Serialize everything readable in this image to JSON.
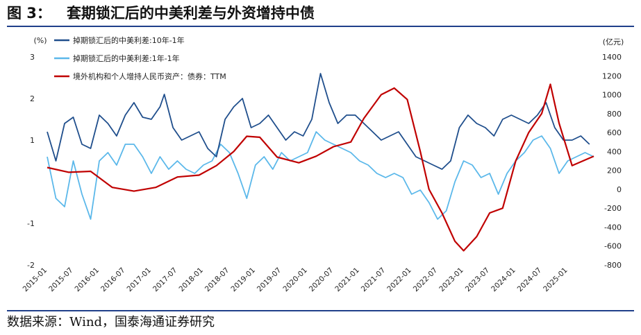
{
  "header": {
    "figure_label": "图 3：",
    "title": "套期锁汇后的中美利差与外资增持中债"
  },
  "source": "数据来源：Wind，国泰海通证券研究",
  "chart_data": {
    "type": "line",
    "left_axis": {
      "unit": "(%)",
      "ylim": [
        -2,
        3
      ],
      "ticks": [
        -2,
        -1,
        1,
        2,
        3
      ]
    },
    "right_axis": {
      "unit": "(亿元)",
      "ylim": [
        -800,
        1400
      ],
      "ticks": [
        -800,
        -600,
        -400,
        -200,
        0,
        200,
        400,
        600,
        800,
        1000,
        1200,
        1400
      ]
    },
    "x_ticks": [
      "2015-01",
      "2015-07",
      "2016-01",
      "2016-07",
      "2017-01",
      "2017-07",
      "2018-01",
      "2018-07",
      "2019-01",
      "2019-07",
      "2020-01",
      "2020-07",
      "2021-01",
      "2021-07",
      "2022-01",
      "2022-07",
      "2023-01",
      "2023-07",
      "2024-01",
      "2024-07",
      "2025-01"
    ],
    "x_range": [
      "2015-01",
      "2025-07"
    ],
    "legend_position": "top-left",
    "series": [
      {
        "name": "掉期锁汇后的中美利差:10年-1年",
        "axis": "left",
        "color": "#1f4e8c",
        "points": [
          [
            "2015-01",
            1.2
          ],
          [
            "2015-03",
            0.5
          ],
          [
            "2015-05",
            1.4
          ],
          [
            "2015-07",
            1.55
          ],
          [
            "2015-09",
            0.9
          ],
          [
            "2015-11",
            0.8
          ],
          [
            "2016-01",
            1.6
          ],
          [
            "2016-03",
            1.4
          ],
          [
            "2016-05",
            1.1
          ],
          [
            "2016-07",
            1.6
          ],
          [
            "2016-09",
            1.9
          ],
          [
            "2016-11",
            1.55
          ],
          [
            "2017-01",
            1.5
          ],
          [
            "2017-03",
            1.8
          ],
          [
            "2017-04",
            2.1
          ],
          [
            "2017-06",
            1.3
          ],
          [
            "2017-08",
            1.0
          ],
          [
            "2017-10",
            1.1
          ],
          [
            "2017-12",
            1.2
          ],
          [
            "2018-02",
            0.8
          ],
          [
            "2018-04",
            0.6
          ],
          [
            "2018-06",
            1.5
          ],
          [
            "2018-08",
            1.8
          ],
          [
            "2018-10",
            2.0
          ],
          [
            "2018-12",
            1.3
          ],
          [
            "2019-02",
            1.4
          ],
          [
            "2019-04",
            1.6
          ],
          [
            "2019-06",
            1.3
          ],
          [
            "2019-08",
            1.0
          ],
          [
            "2019-10",
            1.2
          ],
          [
            "2019-12",
            1.1
          ],
          [
            "2020-02",
            1.5
          ],
          [
            "2020-04",
            2.6
          ],
          [
            "2020-06",
            1.9
          ],
          [
            "2020-08",
            1.4
          ],
          [
            "2020-10",
            1.6
          ],
          [
            "2020-12",
            1.6
          ],
          [
            "2021-02",
            1.4
          ],
          [
            "2021-04",
            1.2
          ],
          [
            "2021-06",
            1.0
          ],
          [
            "2021-08",
            1.1
          ],
          [
            "2021-10",
            1.2
          ],
          [
            "2021-12",
            0.9
          ],
          [
            "2022-02",
            0.6
          ],
          [
            "2022-04",
            0.5
          ],
          [
            "2022-06",
            0.4
          ],
          [
            "2022-08",
            0.3
          ],
          [
            "2022-10",
            0.5
          ],
          [
            "2022-12",
            1.3
          ],
          [
            "2023-02",
            1.6
          ],
          [
            "2023-04",
            1.4
          ],
          [
            "2023-06",
            1.3
          ],
          [
            "2023-08",
            1.1
          ],
          [
            "2023-10",
            1.5
          ],
          [
            "2023-12",
            1.6
          ],
          [
            "2024-02",
            1.5
          ],
          [
            "2024-04",
            1.4
          ],
          [
            "2024-06",
            1.6
          ],
          [
            "2024-08",
            1.9
          ],
          [
            "2024-10",
            1.3
          ],
          [
            "2024-12",
            1.0
          ],
          [
            "2025-02",
            1.0
          ],
          [
            "2025-04",
            1.1
          ],
          [
            "2025-06",
            0.9
          ]
        ]
      },
      {
        "name": "掉期锁汇后的中美利差:1年-1年",
        "axis": "left",
        "color": "#5bb8ea",
        "points": [
          [
            "2015-01",
            0.6
          ],
          [
            "2015-03",
            -0.4
          ],
          [
            "2015-05",
            -0.6
          ],
          [
            "2015-07",
            0.5
          ],
          [
            "2015-09",
            -0.3
          ],
          [
            "2015-11",
            -0.9
          ],
          [
            "2016-01",
            0.5
          ],
          [
            "2016-03",
            0.7
          ],
          [
            "2016-05",
            0.4
          ],
          [
            "2016-07",
            0.9
          ],
          [
            "2016-09",
            0.9
          ],
          [
            "2016-11",
            0.6
          ],
          [
            "2017-01",
            0.2
          ],
          [
            "2017-03",
            0.6
          ],
          [
            "2017-05",
            0.3
          ],
          [
            "2017-07",
            0.5
          ],
          [
            "2017-09",
            0.3
          ],
          [
            "2017-11",
            0.2
          ],
          [
            "2018-01",
            0.4
          ],
          [
            "2018-03",
            0.5
          ],
          [
            "2018-05",
            0.9
          ],
          [
            "2018-07",
            0.7
          ],
          [
            "2018-09",
            0.2
          ],
          [
            "2018-11",
            -0.4
          ],
          [
            "2019-01",
            0.4
          ],
          [
            "2019-03",
            0.6
          ],
          [
            "2019-05",
            0.3
          ],
          [
            "2019-07",
            0.7
          ],
          [
            "2019-09",
            0.5
          ],
          [
            "2019-11",
            0.6
          ],
          [
            "2020-01",
            0.7
          ],
          [
            "2020-03",
            1.2
          ],
          [
            "2020-05",
            1.0
          ],
          [
            "2020-07",
            0.9
          ],
          [
            "2020-09",
            0.8
          ],
          [
            "2020-11",
            0.7
          ],
          [
            "2021-01",
            0.5
          ],
          [
            "2021-03",
            0.4
          ],
          [
            "2021-05",
            0.2
          ],
          [
            "2021-07",
            0.1
          ],
          [
            "2021-09",
            0.2
          ],
          [
            "2021-11",
            0.1
          ],
          [
            "2022-01",
            -0.3
          ],
          [
            "2022-03",
            -0.2
          ],
          [
            "2022-05",
            -0.5
          ],
          [
            "2022-07",
            -0.9
          ],
          [
            "2022-09",
            -0.7
          ],
          [
            "2022-11",
            0.0
          ],
          [
            "2023-01",
            0.5
          ],
          [
            "2023-03",
            0.4
          ],
          [
            "2023-05",
            0.1
          ],
          [
            "2023-07",
            0.2
          ],
          [
            "2023-09",
            -0.3
          ],
          [
            "2023-11",
            0.2
          ],
          [
            "2024-01",
            0.5
          ],
          [
            "2024-03",
            0.7
          ],
          [
            "2024-05",
            1.0
          ],
          [
            "2024-07",
            1.1
          ],
          [
            "2024-09",
            0.8
          ],
          [
            "2024-11",
            0.2
          ],
          [
            "2025-01",
            0.5
          ],
          [
            "2025-03",
            0.6
          ],
          [
            "2025-05",
            0.7
          ],
          [
            "2025-07",
            0.6
          ]
        ]
      },
      {
        "name": "境外机构和个人增持人民币资产：债券：TTM",
        "axis": "right",
        "color": "#c00000",
        "points": [
          [
            "2015-01",
            230
          ],
          [
            "2015-06",
            180
          ],
          [
            "2015-11",
            190
          ],
          [
            "2016-04",
            20
          ],
          [
            "2016-09",
            -20
          ],
          [
            "2017-02",
            20
          ],
          [
            "2017-07",
            130
          ],
          [
            "2017-12",
            150
          ],
          [
            "2018-04",
            250
          ],
          [
            "2018-08",
            400
          ],
          [
            "2018-11",
            560
          ],
          [
            "2019-02",
            550
          ],
          [
            "2019-06",
            340
          ],
          [
            "2019-11",
            280
          ],
          [
            "2020-03",
            350
          ],
          [
            "2020-07",
            450
          ],
          [
            "2020-11",
            500
          ],
          [
            "2021-02",
            750
          ],
          [
            "2021-06",
            1000
          ],
          [
            "2021-09",
            1070
          ],
          [
            "2021-12",
            950
          ],
          [
            "2022-03",
            400
          ],
          [
            "2022-05",
            0
          ],
          [
            "2022-08",
            -250
          ],
          [
            "2022-11",
            -550
          ],
          [
            "2023-01",
            -650
          ],
          [
            "2023-04",
            -500
          ],
          [
            "2023-07",
            -250
          ],
          [
            "2023-10",
            -200
          ],
          [
            "2024-01",
            300
          ],
          [
            "2024-04",
            600
          ],
          [
            "2024-07",
            800
          ],
          [
            "2024-09",
            1110
          ],
          [
            "2024-11",
            700
          ],
          [
            "2025-02",
            250
          ],
          [
            "2025-07",
            350
          ]
        ]
      }
    ]
  }
}
